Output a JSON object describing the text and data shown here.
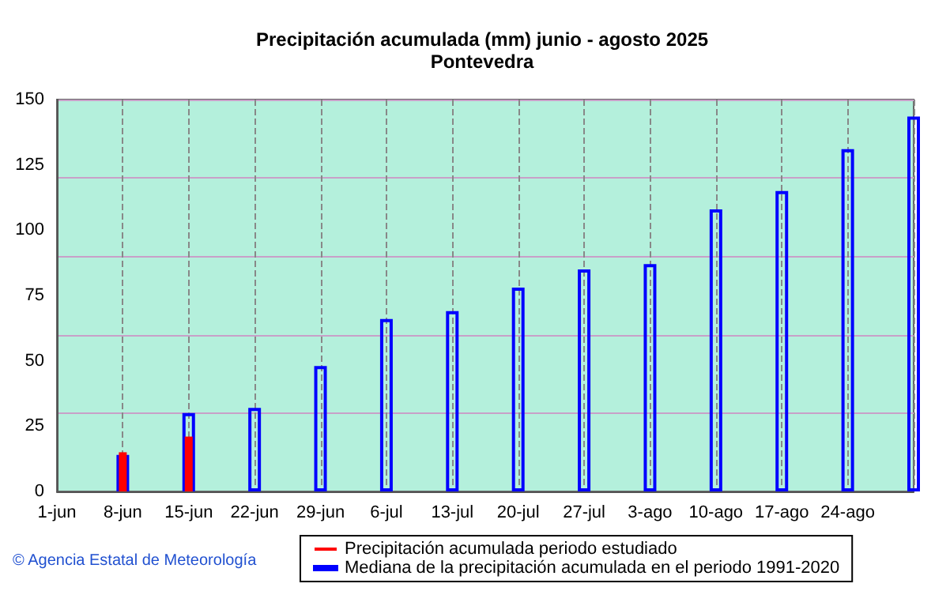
{
  "chart_data": {
    "type": "bar",
    "title": "Precipitación acumulada (mm) junio - agosto 2025",
    "subtitle": "Pontevedra",
    "categories": [
      "1-jun",
      "8-jun",
      "15-jun",
      "22-jun",
      "29-jun",
      "6-jul",
      "13-jul",
      "20-jul",
      "27-jul",
      "3-ago",
      "10-ago",
      "17-ago",
      "24-ago",
      null
    ],
    "series": [
      {
        "name": "Mediana de la precipitación acumulada en el periodo 1991-2020",
        "color": "#0000ff",
        "values": [
          null,
          14,
          30,
          32,
          48,
          66,
          69,
          78,
          85,
          87,
          108,
          115,
          131,
          143.5
        ]
      },
      {
        "name": "Precipitación acumulada periodo estudiado",
        "color": "#ff0000",
        "values": [
          null,
          15,
          21,
          null,
          null,
          null,
          null,
          null,
          null,
          null,
          null,
          null,
          null,
          null
        ]
      }
    ],
    "ylim": [
      0,
      150
    ],
    "yticks": [
      0,
      25,
      50,
      75,
      100,
      125,
      150
    ],
    "grid": true,
    "legend": "bottom",
    "annotations": [
      "© Agencia Estatal de Meteorología"
    ]
  }
}
